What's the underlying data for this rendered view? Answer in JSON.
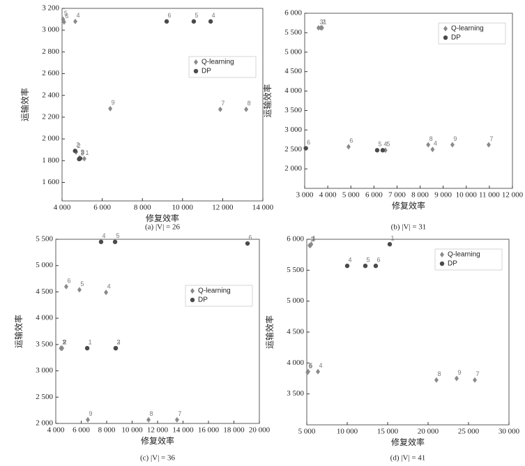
{
  "chart_data": [
    {
      "type": "scatter",
      "caption": "(a)  |V| =  26",
      "xlabel": "修复效率",
      "ylabel": "运输效率",
      "xlim": [
        4000,
        14000
      ],
      "ylim": [
        1430,
        3200
      ],
      "legend": "center right",
      "xticks": [
        {
          "value": 4000,
          "label": "4 000"
        },
        {
          "value": 6000,
          "label": "6 000"
        },
        {
          "value": 8000,
          "label": "8 000"
        },
        {
          "value": 10000,
          "label": "10 000"
        },
        {
          "value": 12000,
          "label": "12 000"
        },
        {
          "value": 14000,
          "label": "14 000"
        }
      ],
      "yticks": [
        {
          "value": 1600,
          "label": "1 600"
        },
        {
          "value": 1800,
          "label": "1 800"
        },
        {
          "value": 2000,
          "label": "2 000"
        },
        {
          "value": 2200,
          "label": "2 200"
        },
        {
          "value": 2400,
          "label": "2 400"
        },
        {
          "value": 2600,
          "label": "2 600"
        },
        {
          "value": 2800,
          "label": "2 800"
        },
        {
          "value": 3000,
          "label": "3 000"
        },
        {
          "value": 3200,
          "label": "3 200"
        }
      ],
      "series": [
        {
          "name": "Q-learning",
          "color": "#8a8a8a",
          "marker": "diamond",
          "labels": [
            "5",
            "6",
            "4",
            "9",
            "7",
            "8",
            "2",
            "3",
            "1"
          ],
          "x": [
            4050,
            4100,
            4660,
            6400,
            11880,
            13170,
            4700,
            4870,
            5110
          ],
          "values": [
            3100,
            3075,
            3080,
            2278,
            2272,
            2272,
            1880,
            1825,
            1818
          ]
        },
        {
          "name": "DP",
          "color": "#4a4a4a",
          "marker": "circle",
          "labels": [
            "6",
            "5",
            "4",
            "2",
            "3",
            "1"
          ],
          "x": [
            9210,
            10560,
            11400,
            4650,
            4900,
            4850
          ],
          "values": [
            3080,
            3080,
            3080,
            1890,
            1820,
            1815
          ]
        }
      ]
    },
    {
      "type": "scatter",
      "caption": "(b)  |V| =  31",
      "xlabel": "修复效率",
      "ylabel": "运输效率",
      "xlim": [
        3000,
        12000
      ],
      "ylim": [
        1500,
        6000
      ],
      "legend": "upper right",
      "xticks": [
        {
          "value": 3000,
          "label": "3 000"
        },
        {
          "value": 4000,
          "label": "4 000"
        },
        {
          "value": 5000,
          "label": "5 000"
        },
        {
          "value": 6000,
          "label": "6 000"
        },
        {
          "value": 7000,
          "label": "7 000"
        },
        {
          "value": 8000,
          "label": "8 000"
        },
        {
          "value": 9000,
          "label": "9 000"
        },
        {
          "value": 10000,
          "label": "10 000"
        },
        {
          "value": 11000,
          "label": "11 000"
        },
        {
          "value": 12000,
          "label": "12 000"
        }
      ],
      "yticks": [
        {
          "value": 2000,
          "label": "2 000"
        },
        {
          "value": 2500,
          "label": "2 500"
        },
        {
          "value": 3000,
          "label": "3 000"
        },
        {
          "value": 3500,
          "label": "3 500"
        },
        {
          "value": 4000,
          "label": "4 000"
        },
        {
          "value": 4500,
          "label": "4 500"
        },
        {
          "value": 5000,
          "label": "5 000"
        },
        {
          "value": 5500,
          "label": "5 500"
        },
        {
          "value": 6000,
          "label": "6 000"
        }
      ],
      "series": [
        {
          "name": "Q-learning",
          "color": "#8a8a8a",
          "marker": "diamond",
          "labels": [
            "3",
            "2",
            "1",
            "6",
            "5",
            "8",
            "4",
            "9",
            "7"
          ],
          "x": [
            3600,
            3700,
            3750,
            4900,
            6500,
            8350,
            8540,
            9400,
            10970
          ],
          "values": [
            5625,
            5625,
            5625,
            2570,
            2480,
            2620,
            2500,
            2620,
            2620
          ]
        },
        {
          "name": "DP",
          "color": "#4a4a4a",
          "marker": "circle",
          "labels": [
            "6",
            "5",
            "4"
          ],
          "x": [
            3050,
            6140,
            6380
          ],
          "values": [
            2530,
            2480,
            2480
          ]
        }
      ]
    },
    {
      "type": "scatter",
      "caption": "(c)  |V| =  36",
      "xlabel": "修复效率",
      "ylabel": "运输效率",
      "xlim": [
        4000,
        20000
      ],
      "ylim": [
        2000,
        5500
      ],
      "legend": "center right",
      "xticks": [
        {
          "value": 4000,
          "label": "4 000"
        },
        {
          "value": 6000,
          "label": "6 000"
        },
        {
          "value": 8000,
          "label": "8 000"
        },
        {
          "value": 10000,
          "label": "10 000"
        },
        {
          "value": 12000,
          "label": "12 000"
        },
        {
          "value": 14000,
          "label": "14 000"
        },
        {
          "value": 16000,
          "label": "16 000"
        },
        {
          "value": 18000,
          "label": "18 000"
        },
        {
          "value": 20000,
          "label": "20 000"
        }
      ],
      "yticks": [
        {
          "value": 2000,
          "label": "2 000"
        },
        {
          "value": 2500,
          "label": "2 500"
        },
        {
          "value": 3000,
          "label": "3 000"
        },
        {
          "value": 3500,
          "label": "3 500"
        },
        {
          "value": 4000,
          "label": "4 000"
        },
        {
          "value": 4500,
          "label": "4 500"
        },
        {
          "value": 5000,
          "label": "5 000"
        },
        {
          "value": 5500,
          "label": "5 500"
        }
      ],
      "series": [
        {
          "name": "Q-learning",
          "color": "#8a8a8a",
          "marker": "diamond",
          "labels": [
            "1",
            "2",
            "3",
            "6",
            "5",
            "4",
            "9",
            "8",
            "7"
          ],
          "x": [
            4400,
            4500,
            4450,
            4820,
            5860,
            7950,
            6520,
            11290,
            13530
          ],
          "values": [
            3430,
            3430,
            3430,
            4600,
            4540,
            4490,
            2070,
            2070,
            2070
          ]
        },
        {
          "name": "DP",
          "color": "#4a4a4a",
          "marker": "circle",
          "labels": [
            "4",
            "5",
            "6",
            "1",
            "2",
            "3"
          ],
          "x": [
            7560,
            8660,
            19070,
            6470,
            8710,
            8710
          ],
          "values": [
            5450,
            5450,
            5420,
            3430,
            3430,
            3430
          ]
        }
      ]
    },
    {
      "type": "scatter",
      "caption": "(d)  |V| =  41",
      "xlabel": "修复效率",
      "ylabel": "运输效率",
      "xlim": [
        5000,
        30000
      ],
      "ylim": [
        3000,
        6000
      ],
      "legend": "upper right",
      "xticks": [
        {
          "value": 5000,
          "label": "5 000"
        },
        {
          "value": 10000,
          "label": "10 000"
        },
        {
          "value": 15000,
          "label": "15 000"
        },
        {
          "value": 20000,
          "label": "20 000"
        },
        {
          "value": 25000,
          "label": "25 000"
        },
        {
          "value": 30000,
          "label": "30 000"
        }
      ],
      "yticks": [
        {
          "value": 3500,
          "label": "3 500"
        },
        {
          "value": 4000,
          "label": "4 000"
        },
        {
          "value": 4500,
          "label": "4 500"
        },
        {
          "value": 5000,
          "label": "5 000"
        },
        {
          "value": 5500,
          "label": "5 500"
        },
        {
          "value": 6000,
          "label": "6 000"
        }
      ],
      "series": [
        {
          "name": "Q-learning",
          "color": "#8a8a8a",
          "marker": "diamond",
          "labels": [
            "3",
            "2",
            "1",
            "5",
            "6",
            "4",
            "8",
            "9",
            "7"
          ],
          "x": [
            5350,
            5450,
            5550,
            5170,
            5100,
            6380,
            21030,
            23530,
            25780
          ],
          "values": [
            5900,
            5900,
            5920,
            3860,
            3850,
            3860,
            3725,
            3750,
            3725
          ]
        },
        {
          "name": "DP",
          "color": "#4a4a4a",
          "marker": "circle",
          "labels": [
            "4",
            "5",
            "6",
            "1"
          ],
          "x": [
            10000,
            12240,
            13530,
            15260
          ],
          "values": [
            5570,
            5570,
            5570,
            5920
          ]
        }
      ]
    }
  ]
}
